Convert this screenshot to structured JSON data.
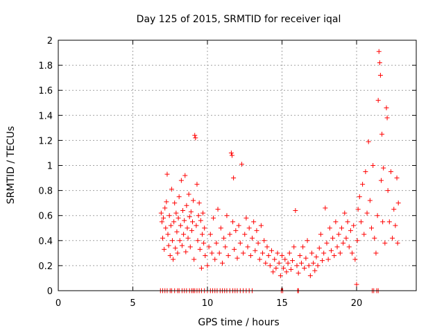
{
  "chart_data": {
    "type": "scatter",
    "title": "Day 125 of 2015, SRMTID for receiver iqal",
    "xlabel": "GPS time / hours",
    "ylabel": "SRMTID / TECUs",
    "xlim": [
      0,
      24
    ],
    "ylim": [
      0,
      2
    ],
    "xticks": [
      0,
      5,
      10,
      15,
      20
    ],
    "yticks": [
      0,
      0.2,
      0.4,
      0.6,
      0.8,
      1,
      1.2,
      1.4,
      1.6,
      1.8,
      2
    ],
    "xtick_labels": [
      "0",
      "5",
      "10",
      "15",
      "20"
    ],
    "ytick_labels": [
      "0",
      "0.2",
      "0.4",
      "0.6",
      "0.8",
      "1",
      "1.2",
      "1.4",
      "1.6",
      "1.8",
      "2"
    ],
    "grid": true,
    "marker": "+",
    "color": "#ff0000",
    "series": [
      {
        "name": "SRMTID",
        "points": [
          [
            6.9,
            0.62
          ],
          [
            6.95,
            0.55
          ],
          [
            7.0,
            0.42
          ],
          [
            7.05,
            0.58
          ],
          [
            7.1,
            0.33
          ],
          [
            7.15,
            0.66
          ],
          [
            7.2,
            0.5
          ],
          [
            7.25,
            0.71
          ],
          [
            7.3,
            0.93
          ],
          [
            7.35,
            0.45
          ],
          [
            7.4,
            0.36
          ],
          [
            7.45,
            0.6
          ],
          [
            7.5,
            0.28
          ],
          [
            7.55,
            0.52
          ],
          [
            7.6,
            0.81
          ],
          [
            7.65,
            0.4
          ],
          [
            7.7,
            0.25
          ],
          [
            7.75,
            0.55
          ],
          [
            7.8,
            0.7
          ],
          [
            7.85,
            0.34
          ],
          [
            7.9,
            0.62
          ],
          [
            7.95,
            0.47
          ],
          [
            8.0,
            0.3
          ],
          [
            8.05,
            0.58
          ],
          [
            8.1,
            0.75
          ],
          [
            8.15,
            0.4
          ],
          [
            8.2,
            0.52
          ],
          [
            8.25,
            0.88
          ],
          [
            8.3,
            0.36
          ],
          [
            8.35,
            0.64
          ],
          [
            8.4,
            0.45
          ],
          [
            8.45,
            0.56
          ],
          [
            8.5,
            0.92
          ],
          [
            8.55,
            0.31
          ],
          [
            8.6,
            0.68
          ],
          [
            8.65,
            0.5
          ],
          [
            8.7,
            0.42
          ],
          [
            8.75,
            0.77
          ],
          [
            8.8,
            0.59
          ],
          [
            8.85,
            0.35
          ],
          [
            8.9,
            0.63
          ],
          [
            8.95,
            0.48
          ],
          [
            9.0,
            0.55
          ],
          [
            9.05,
            0.72
          ],
          [
            9.1,
            0.25
          ],
          [
            9.15,
            1.24
          ],
          [
            9.2,
            1.22
          ],
          [
            9.25,
            0.52
          ],
          [
            9.3,
            0.85
          ],
          [
            9.35,
            0.4
          ],
          [
            9.4,
            0.6
          ],
          [
            9.45,
            0.7
          ],
          [
            9.5,
            0.33
          ],
          [
            9.55,
            0.56
          ],
          [
            9.6,
            0.18
          ],
          [
            9.65,
            0.45
          ],
          [
            9.7,
            0.62
          ],
          [
            9.75,
            0.38
          ],
          [
            9.8,
            0.5
          ],
          [
            9.85,
            0.28
          ],
          [
            10.0,
            0.2
          ],
          [
            10.1,
            0.35
          ],
          [
            10.2,
            0.45
          ],
          [
            10.3,
            0.3
          ],
          [
            10.4,
            0.58
          ],
          [
            10.5,
            0.25
          ],
          [
            10.6,
            0.38
          ],
          [
            10.7,
            0.65
          ],
          [
            10.8,
            0.3
          ],
          [
            10.9,
            0.5
          ],
          [
            11.0,
            0.22
          ],
          [
            11.1,
            0.42
          ],
          [
            11.2,
            0.35
          ],
          [
            11.3,
            0.6
          ],
          [
            11.4,
            0.28
          ],
          [
            11.5,
            0.45
          ],
          [
            11.6,
            1.1
          ],
          [
            11.65,
            1.08
          ],
          [
            11.7,
            0.55
          ],
          [
            11.75,
            0.9
          ],
          [
            11.8,
            0.33
          ],
          [
            11.9,
            0.48
          ],
          [
            12.0,
            0.26
          ],
          [
            12.1,
            0.52
          ],
          [
            12.2,
            0.38
          ],
          [
            12.3,
            1.01
          ],
          [
            12.4,
            0.3
          ],
          [
            12.5,
            0.45
          ],
          [
            12.6,
            0.58
          ],
          [
            12.7,
            0.35
          ],
          [
            12.8,
            0.5
          ],
          [
            12.9,
            0.28
          ],
          [
            13.0,
            0.42
          ],
          [
            13.1,
            0.55
          ],
          [
            13.2,
            0.32
          ],
          [
            13.3,
            0.48
          ],
          [
            13.4,
            0.38
          ],
          [
            13.5,
            0.25
          ],
          [
            13.6,
            0.52
          ],
          [
            13.7,
            0.3
          ],
          [
            13.8,
            0.4
          ],
          [
            13.9,
            0.22
          ],
          [
            14.0,
            0.35
          ],
          [
            14.1,
            0.28
          ],
          [
            14.2,
            0.2
          ],
          [
            14.3,
            0.32
          ],
          [
            14.4,
            0.15
          ],
          [
            14.5,
            0.25
          ],
          [
            14.6,
            0.18
          ],
          [
            14.7,
            0.3
          ],
          [
            14.8,
            0.22
          ],
          [
            14.9,
            0.12
          ],
          [
            15.0,
            0.28
          ],
          [
            15.1,
            0.18
          ],
          [
            15.2,
            0.25
          ],
          [
            15.3,
            0.15
          ],
          [
            15.4,
            0.22
          ],
          [
            15.5,
            0.3
          ],
          [
            15.6,
            0.17
          ],
          [
            15.7,
            0.24
          ],
          [
            15.8,
            0.35
          ],
          [
            15.9,
            0.64
          ],
          [
            16.0,
            0.2
          ],
          [
            16.1,
            0.14
          ],
          [
            16.2,
            0.28
          ],
          [
            16.3,
            0.22
          ],
          [
            16.4,
            0.35
          ],
          [
            16.5,
            0.18
          ],
          [
            16.6,
            0.26
          ],
          [
            16.7,
            0.4
          ],
          [
            16.8,
            0.2
          ],
          [
            16.9,
            0.12
          ],
          [
            17.0,
            0.3
          ],
          [
            17.1,
            0.22
          ],
          [
            17.2,
            0.16
          ],
          [
            17.3,
            0.27
          ],
          [
            17.4,
            0.2
          ],
          [
            17.5,
            0.34
          ],
          [
            17.6,
            0.45
          ],
          [
            17.7,
            0.24
          ],
          [
            17.8,
            0.3
          ],
          [
            17.9,
            0.66
          ],
          [
            18.0,
            0.38
          ],
          [
            18.1,
            0.25
          ],
          [
            18.2,
            0.5
          ],
          [
            18.3,
            0.32
          ],
          [
            18.4,
            0.42
          ],
          [
            18.5,
            0.28
          ],
          [
            18.6,
            0.55
          ],
          [
            18.7,
            0.35
          ],
          [
            18.8,
            0.45
          ],
          [
            18.9,
            0.3
          ],
          [
            19.0,
            0.5
          ],
          [
            19.1,
            0.38
          ],
          [
            19.2,
            0.62
          ],
          [
            19.3,
            0.42
          ],
          [
            19.4,
            0.55
          ],
          [
            19.5,
            0.35
          ],
          [
            19.6,
            0.48
          ],
          [
            19.7,
            0.3
          ],
          [
            19.8,
            0.52
          ],
          [
            19.9,
            0.25
          ],
          [
            20.0,
            0.05
          ],
          [
            20.05,
            0.4
          ],
          [
            20.1,
            0.65
          ],
          [
            20.2,
            0.75
          ],
          [
            20.3,
            0.55
          ],
          [
            20.4,
            0.85
          ],
          [
            20.5,
            0.45
          ],
          [
            20.6,
            0.95
          ],
          [
            20.7,
            0.62
          ],
          [
            20.8,
            1.19
          ],
          [
            20.9,
            0.72
          ],
          [
            21.0,
            0.5
          ],
          [
            21.1,
            1.0
          ],
          [
            21.2,
            0.42
          ],
          [
            21.3,
            0.3
          ],
          [
            21.4,
            0.6
          ],
          [
            21.45,
            1.52
          ],
          [
            21.5,
            1.91
          ],
          [
            21.55,
            1.82
          ],
          [
            21.6,
            1.72
          ],
          [
            21.65,
            0.88
          ],
          [
            21.7,
            1.25
          ],
          [
            21.75,
            0.55
          ],
          [
            21.8,
            0.98
          ],
          [
            21.9,
            0.38
          ],
          [
            22.0,
            1.46
          ],
          [
            22.05,
            1.38
          ],
          [
            22.1,
            0.8
          ],
          [
            22.2,
            0.55
          ],
          [
            22.3,
            0.95
          ],
          [
            22.4,
            0.42
          ],
          [
            22.5,
            0.65
          ],
          [
            22.6,
            0.52
          ],
          [
            22.7,
            0.9
          ],
          [
            22.75,
            0.38
          ],
          [
            22.8,
            0.7
          ]
        ],
        "zero_points_x": [
          6.85,
          7.0,
          7.15,
          7.3,
          7.5,
          7.6,
          7.8,
          8.0,
          8.1,
          8.3,
          8.45,
          8.6,
          8.8,
          8.95,
          9.05,
          9.15,
          9.3,
          9.45,
          9.6,
          9.8,
          10.0,
          10.2,
          10.35,
          10.5,
          10.65,
          10.85,
          11.0,
          11.15,
          11.3,
          11.5,
          11.7,
          11.85,
          12.0,
          12.2,
          12.4,
          12.6,
          12.8,
          13.0,
          14.95,
          15.05,
          16.05,
          16.1,
          21.05,
          21.15,
          21.35,
          21.45
        ]
      }
    ]
  }
}
